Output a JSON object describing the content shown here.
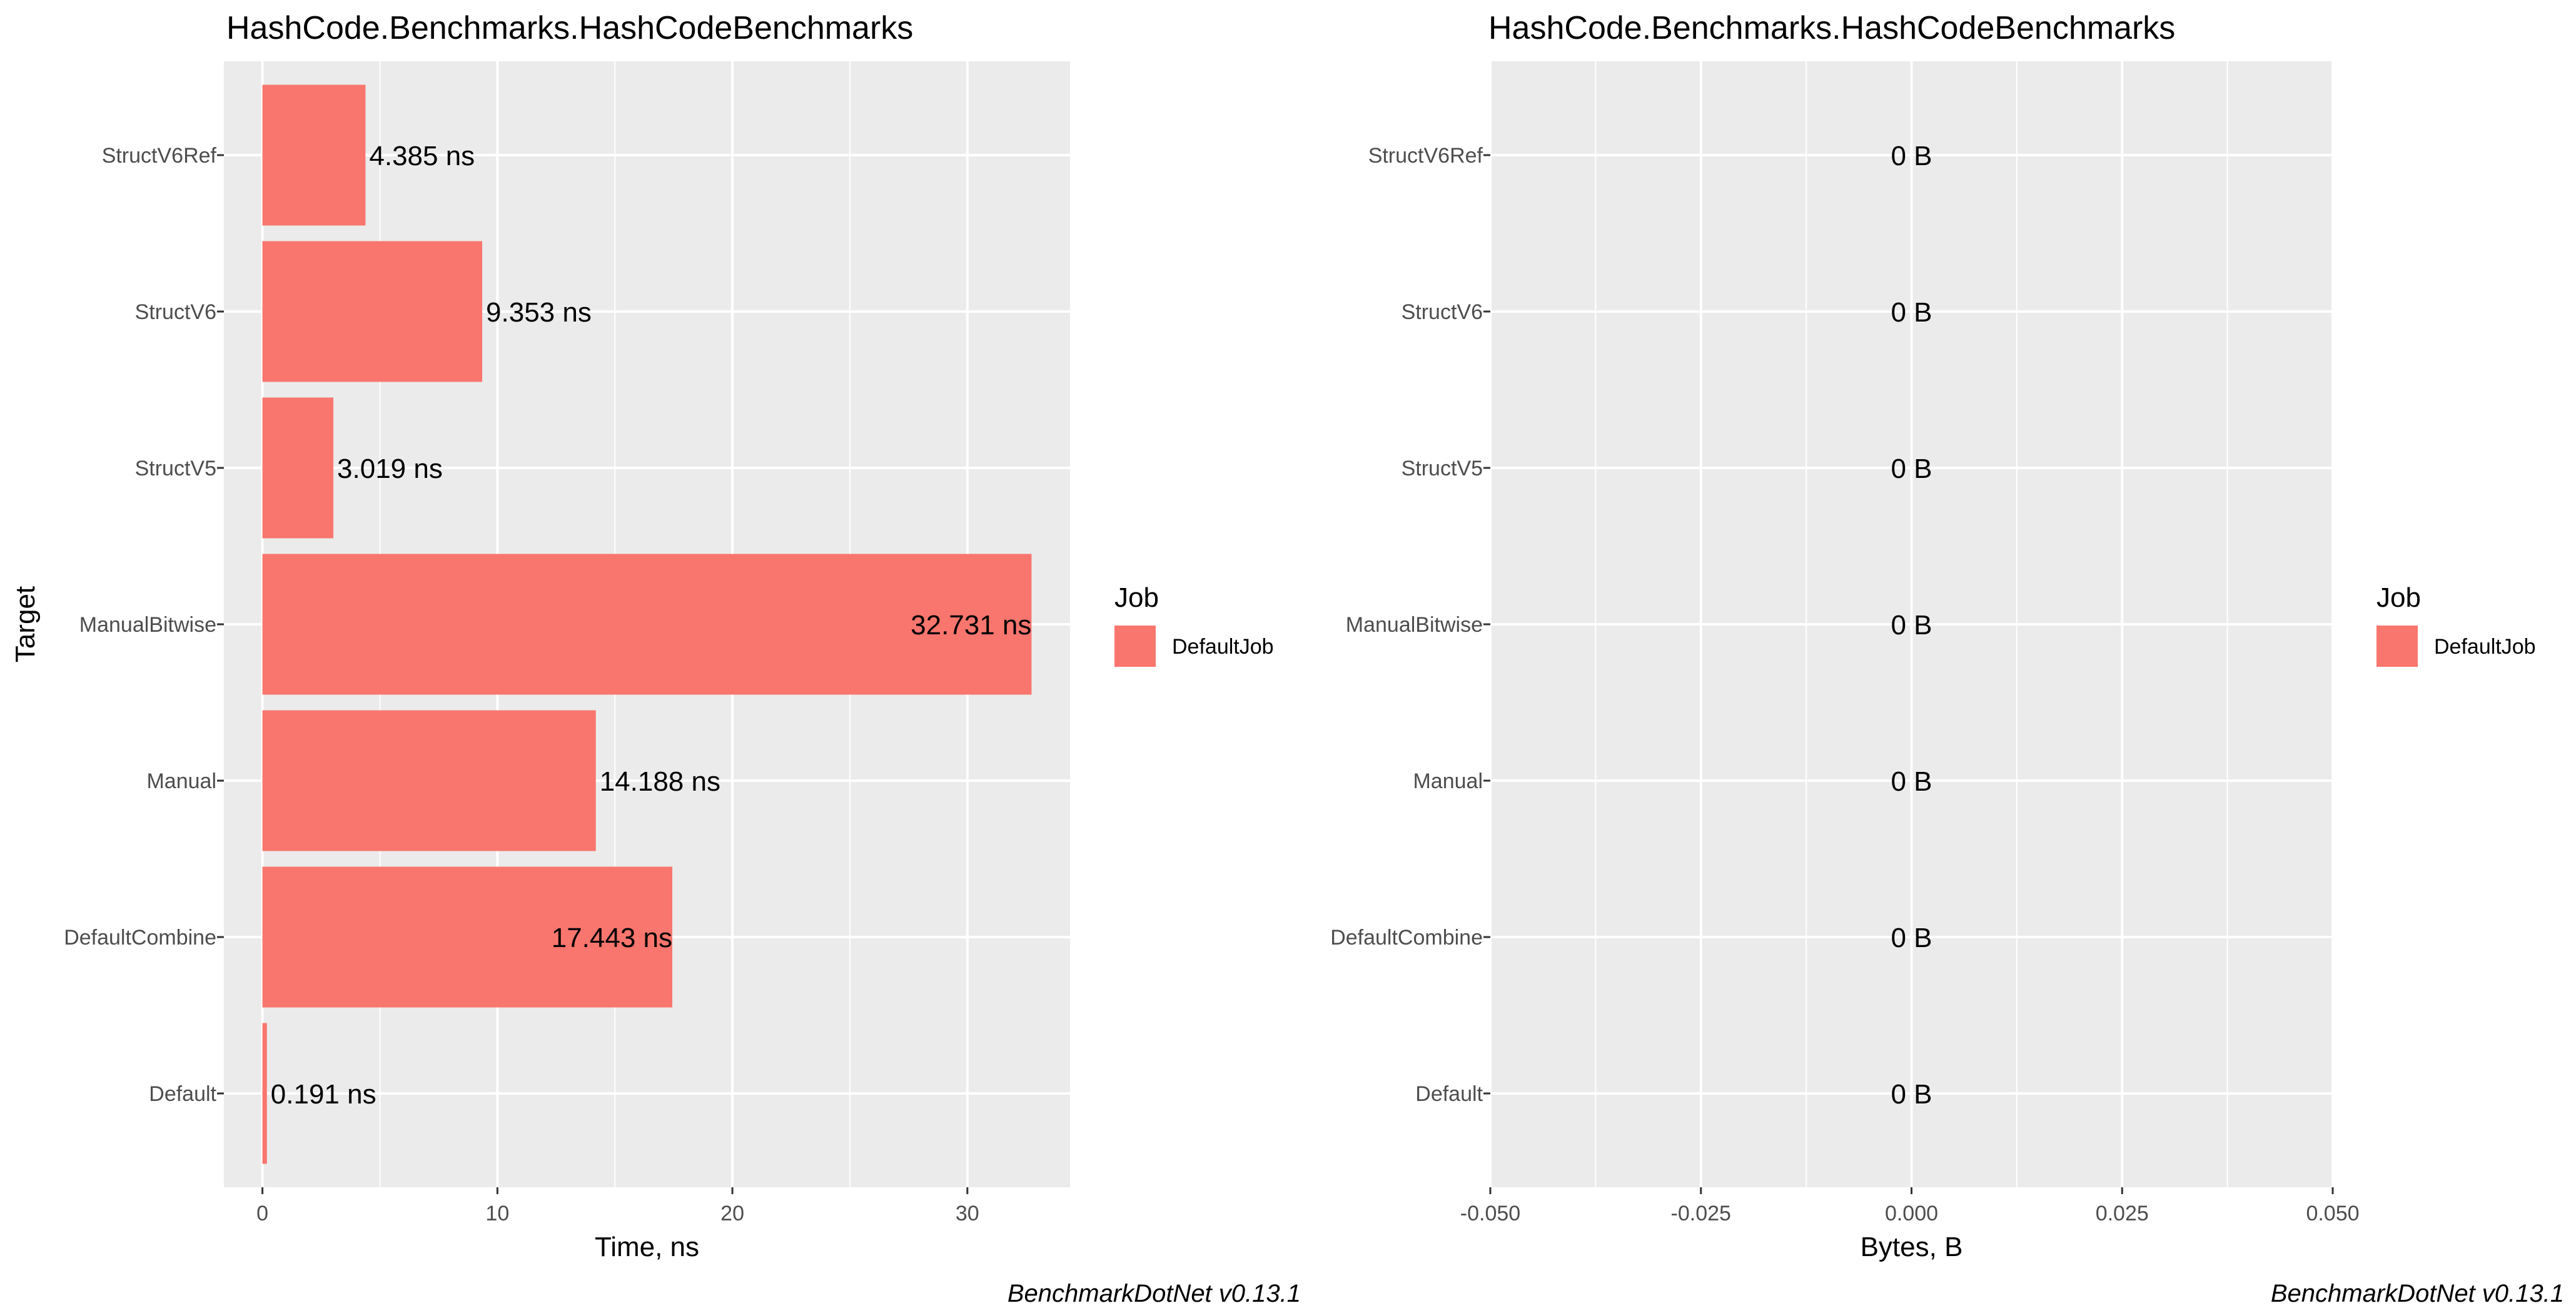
{
  "caption": "BenchmarkDotNet v0.13.1",
  "colors": {
    "panel_bg": "#EBEBEB",
    "grid": "#FFFFFF",
    "bar": "#F8766D",
    "text": "#000000",
    "tick_text": "#4D4D4D"
  },
  "chart_data": [
    {
      "type": "bar",
      "orientation": "horizontal",
      "title": "HashCode.Benchmarks.HashCodeBenchmarks",
      "xlabel": "Time, ns",
      "ylabel": "Target",
      "categories": [
        "StructV6Ref",
        "StructV6",
        "StructV5",
        "ManualBitwise",
        "Manual",
        "DefaultCombine",
        "Default"
      ],
      "values": [
        4.385,
        9.353,
        3.019,
        32.731,
        14.188,
        17.443,
        0.191
      ],
      "data_labels": [
        "4.385 ns",
        "9.353 ns",
        "3.019 ns",
        "32.731 ns",
        "14.188 ns",
        "17.443 ns",
        "0.191 ns"
      ],
      "xlim": [
        -1.64,
        34.37
      ],
      "xticks": [
        0,
        10,
        20,
        30
      ],
      "xtick_labels": [
        "0",
        "10",
        "20",
        "30"
      ],
      "grid": true,
      "legend": {
        "title": "Job",
        "placement": "right",
        "entries": [
          {
            "name": "DefaultJob",
            "color": "#F8766D"
          }
        ]
      }
    },
    {
      "type": "bar",
      "orientation": "horizontal",
      "title": "HashCode.Benchmarks.HashCodeBenchmarks",
      "xlabel": "Bytes, B",
      "ylabel": "",
      "categories": [
        "StructV6Ref",
        "StructV6",
        "StructV5",
        "ManualBitwise",
        "Manual",
        "DefaultCombine",
        "Default"
      ],
      "values": [
        0,
        0,
        0,
        0,
        0,
        0,
        0
      ],
      "data_labels": [
        "0 B",
        "0 B",
        "0 B",
        "0 B",
        "0 B",
        "0 B",
        "0 B"
      ],
      "xlim": [
        -0.05,
        0.05
      ],
      "xticks": [
        -0.05,
        -0.025,
        0,
        0.025,
        0.05
      ],
      "xtick_labels": [
        "-0.050",
        "-0.025",
        "0.000",
        "0.025",
        "0.050"
      ],
      "grid": true,
      "legend": {
        "title": "Job",
        "placement": "right",
        "entries": [
          {
            "name": "DefaultJob",
            "color": "#F8766D"
          }
        ]
      }
    }
  ]
}
